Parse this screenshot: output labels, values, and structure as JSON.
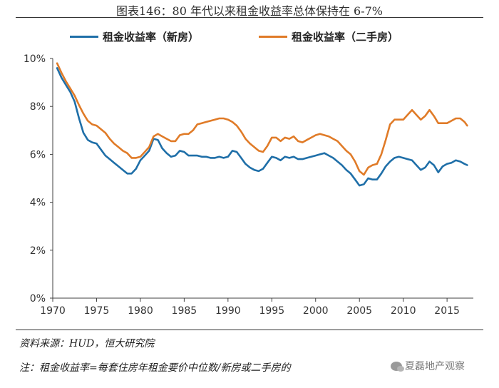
{
  "page": {
    "title": "图表146：80 年代以来租金收益率总体保持在 6-7%",
    "source": "资料来源：HUD，恒大研究院",
    "note": "注：租金收益率=每套住房年租金要价中位数/新房或二手房的",
    "watermark": "夏磊地产观察"
  },
  "chart_data": {
    "type": "line",
    "title": "",
    "xlabel": "",
    "ylabel": "",
    "xlim": [
      1970,
      2018
    ],
    "ylim": [
      0,
      10
    ],
    "x_ticks": [
      1970,
      1975,
      1980,
      1985,
      1990,
      1995,
      2000,
      2005,
      2010,
      2015
    ],
    "y_ticks": [
      0,
      2,
      4,
      6,
      8,
      10
    ],
    "y_tick_labels": [
      "0%",
      "2%",
      "4%",
      "6%",
      "8%",
      "10%"
    ],
    "grid": false,
    "legend_position": "top",
    "series": [
      {
        "name": "租金收益率（新房）",
        "color": "#1f6fa8",
        "x": [
          1970.5,
          1971,
          1971.5,
          1972,
          1972.5,
          1973,
          1973.5,
          1974,
          1974.5,
          1975,
          1975.5,
          1976,
          1976.5,
          1977,
          1977.5,
          1978,
          1978.5,
          1979,
          1979.5,
          1980,
          1980.5,
          1981,
          1981.5,
          1982,
          1982.5,
          1983,
          1983.5,
          1984,
          1984.5,
          1985,
          1985.5,
          1986,
          1986.5,
          1987,
          1987.5,
          1988,
          1988.5,
          1989,
          1989.5,
          1990,
          1990.5,
          1991,
          1991.5,
          1992,
          1992.5,
          1993,
          1993.5,
          1994,
          1994.5,
          1995,
          1995.5,
          1996,
          1996.5,
          1997,
          1997.5,
          1998,
          1998.5,
          1999,
          1999.5,
          2000,
          2000.5,
          2001,
          2001.5,
          2002,
          2002.5,
          2003,
          2003.5,
          2004,
          2004.5,
          2005,
          2005.5,
          2006,
          2006.5,
          2007,
          2007.5,
          2008,
          2008.5,
          2009,
          2009.5,
          2010,
          2010.5,
          2011,
          2011.5,
          2012,
          2012.5,
          2013,
          2013.5,
          2014,
          2014.5,
          2015,
          2015.5,
          2016,
          2016.5,
          2017,
          2017.3
        ],
        "values": [
          9.6,
          9.2,
          8.9,
          8.6,
          8.2,
          7.5,
          6.9,
          6.6,
          6.5,
          6.45,
          6.2,
          5.95,
          5.8,
          5.65,
          5.5,
          5.35,
          5.2,
          5.2,
          5.4,
          5.75,
          5.95,
          6.15,
          6.65,
          6.6,
          6.25,
          6.05,
          5.9,
          5.95,
          6.15,
          6.1,
          5.95,
          5.95,
          5.95,
          5.9,
          5.9,
          5.85,
          5.85,
          5.9,
          5.85,
          5.9,
          6.15,
          6.1,
          5.85,
          5.6,
          5.45,
          5.35,
          5.3,
          5.4,
          5.65,
          5.9,
          5.85,
          5.75,
          5.9,
          5.85,
          5.9,
          5.8,
          5.8,
          5.85,
          5.9,
          5.95,
          6.0,
          6.05,
          5.95,
          5.85,
          5.7,
          5.55,
          5.35,
          5.2,
          4.95,
          4.7,
          4.75,
          5.0,
          4.95,
          4.95,
          5.2,
          5.5,
          5.7,
          5.85,
          5.9,
          5.85,
          5.8,
          5.75,
          5.55,
          5.35,
          5.45,
          5.7,
          5.55,
          5.25,
          5.5,
          5.6,
          5.65,
          5.75,
          5.7,
          5.6,
          5.55
        ]
      },
      {
        "name": "租金收益率（二手房）",
        "color": "#e07b28",
        "x": [
          1970.5,
          1971,
          1971.5,
          1972,
          1972.5,
          1973,
          1973.5,
          1974,
          1974.5,
          1975,
          1975.5,
          1976,
          1976.5,
          1977,
          1977.5,
          1978,
          1978.5,
          1979,
          1979.5,
          1980,
          1980.5,
          1981,
          1981.5,
          1982,
          1982.5,
          1983,
          1983.5,
          1984,
          1984.5,
          1985,
          1985.5,
          1986,
          1986.5,
          1987,
          1987.5,
          1988,
          1988.5,
          1989,
          1989.5,
          1990,
          1990.5,
          1991,
          1991.5,
          1992,
          1992.5,
          1993,
          1993.5,
          1994,
          1994.5,
          1995,
          1995.5,
          1996,
          1996.5,
          1997,
          1997.5,
          1998,
          1998.5,
          1999,
          1999.5,
          2000,
          2000.5,
          2001,
          2001.5,
          2002,
          2002.5,
          2003,
          2003.5,
          2004,
          2004.5,
          2005,
          2005.5,
          2006,
          2006.5,
          2007,
          2007.5,
          2008,
          2008.5,
          2009,
          2009.5,
          2010,
          2010.5,
          2011,
          2011.5,
          2012,
          2012.5,
          2013,
          2013.5,
          2014,
          2014.5,
          2015,
          2015.5,
          2016,
          2016.5,
          2017,
          2017.3
        ],
        "values": [
          9.8,
          9.4,
          9.05,
          8.75,
          8.45,
          8.05,
          7.7,
          7.4,
          7.25,
          7.2,
          7.05,
          6.9,
          6.65,
          6.45,
          6.3,
          6.15,
          6.05,
          5.85,
          5.85,
          5.9,
          6.1,
          6.3,
          6.75,
          6.85,
          6.75,
          6.65,
          6.55,
          6.55,
          6.8,
          6.85,
          6.85,
          7.0,
          7.25,
          7.3,
          7.35,
          7.4,
          7.45,
          7.5,
          7.5,
          7.45,
          7.35,
          7.2,
          6.95,
          6.65,
          6.45,
          6.3,
          6.15,
          6.1,
          6.35,
          6.7,
          6.7,
          6.55,
          6.7,
          6.65,
          6.75,
          6.55,
          6.5,
          6.6,
          6.7,
          6.8,
          6.85,
          6.8,
          6.75,
          6.65,
          6.55,
          6.35,
          6.15,
          6.0,
          5.7,
          5.3,
          5.15,
          5.45,
          5.55,
          5.6,
          6.0,
          6.6,
          7.25,
          7.45,
          7.45,
          7.45,
          7.65,
          7.85,
          7.65,
          7.45,
          7.6,
          7.85,
          7.6,
          7.3,
          7.3,
          7.3,
          7.4,
          7.5,
          7.5,
          7.35,
          7.2
        ]
      }
    ]
  }
}
